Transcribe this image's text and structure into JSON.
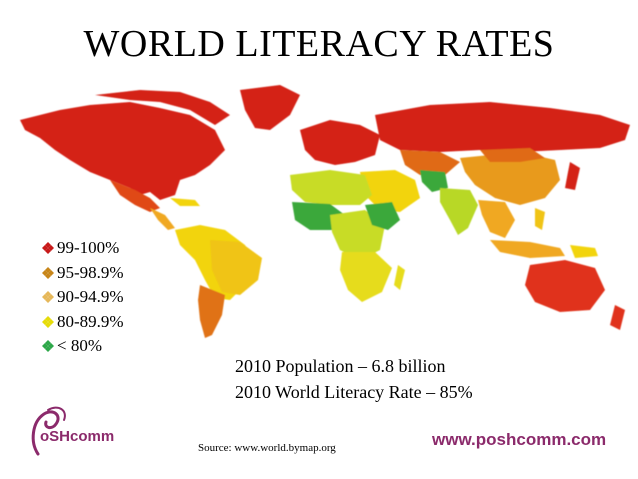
{
  "title": "WORLD LITERACY RATES",
  "legend": [
    {
      "label": "99-100%",
      "color": "#c81a1a"
    },
    {
      "label": "95-98.9%",
      "color": "#c8861a"
    },
    {
      "label": "90-94.9%",
      "color": "#e6b85a"
    },
    {
      "label": "80-89.9%",
      "color": "#e6dc0a"
    },
    {
      "label": "< 80%",
      "color": "#2ea84a"
    }
  ],
  "stats": {
    "population": "2010 Population – 6.8 billion",
    "literacy_rate": "2010 World Literacy Rate – 85%"
  },
  "logo": {
    "text": "oSHcomm",
    "icon": "poshcomm-logo-icon"
  },
  "source": "Source: www.world.bymap.org",
  "website": "www.poshcomm.com",
  "colors": {
    "red": "#cc1616",
    "orange_red": "#e04a12",
    "orange": "#e67814",
    "yellow_orange": "#f0a820",
    "yellow": "#f2d40a",
    "yellow_green": "#c8dc28",
    "green": "#3aa83a",
    "brand": "#8b2a6b"
  }
}
